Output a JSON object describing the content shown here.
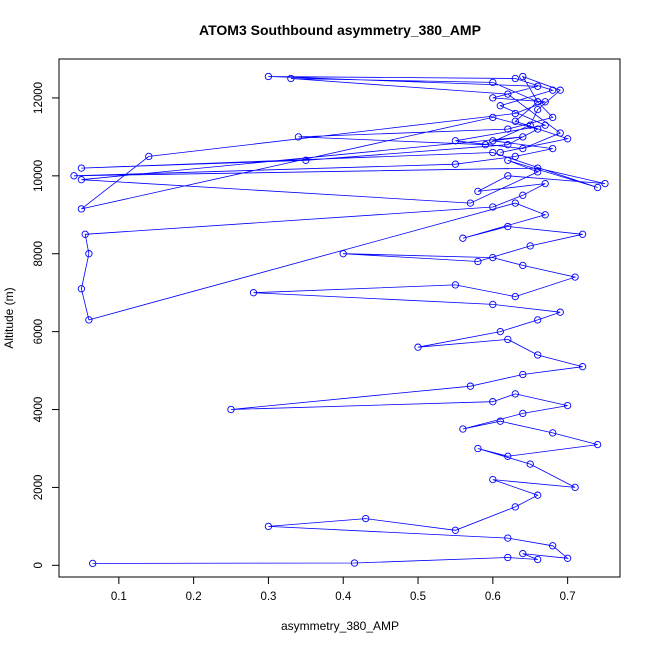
{
  "chart_data": {
    "type": "scatter",
    "title": "ATOM3 Southbound asymmetry_380_AMP",
    "xlabel": "asymmetry_380_AMP",
    "ylabel": "Altitude (m)",
    "xlim": [
      0.02,
      0.77
    ],
    "ylim": [
      -300,
      13000
    ],
    "x_ticks": [
      0.1,
      0.2,
      0.3,
      0.4,
      0.5,
      0.6,
      0.7
    ],
    "x_tick_labels": [
      "0.1",
      "0.2",
      "0.3",
      "0.4",
      "0.5",
      "0.6",
      "0.7"
    ],
    "y_ticks": [
      0,
      2000,
      4000,
      6000,
      8000,
      10000,
      12000
    ],
    "y_tick_labels": [
      "0",
      "2000",
      "4000",
      "6000",
      "8000",
      "10000",
      "12000"
    ],
    "grid": false,
    "legend": "none",
    "series": [
      {
        "color": "#0000ff",
        "marker": "open-circle",
        "line": true,
        "x": [
          0.065,
          0.415,
          0.62,
          0.66,
          0.64,
          0.7,
          0.68,
          0.62,
          0.3,
          0.43,
          0.55,
          0.63,
          0.66,
          0.6,
          0.71,
          0.65,
          0.58,
          0.62,
          0.74,
          0.68,
          0.61,
          0.56,
          0.64,
          0.7,
          0.63,
          0.6,
          0.25,
          0.57,
          0.64,
          0.72,
          0.66,
          0.62,
          0.5,
          0.61,
          0.66,
          0.69,
          0.6,
          0.28,
          0.55,
          0.63,
          0.71,
          0.64,
          0.6,
          0.4,
          0.58,
          0.65,
          0.72,
          0.62,
          0.56,
          0.67,
          0.63,
          0.06,
          0.05,
          0.06,
          0.055,
          0.6,
          0.64,
          0.67,
          0.58,
          0.62,
          0.75,
          0.66,
          0.04,
          0.55,
          0.63,
          0.68,
          0.6,
          0.64,
          0.05,
          0.57,
          0.66,
          0.62,
          0.74,
          0.6,
          0.05,
          0.35,
          0.62,
          0.66,
          0.6,
          0.05,
          0.14,
          0.63,
          0.67,
          0.6,
          0.66,
          0.3,
          0.63,
          0.68,
          0.61,
          0.67,
          0.55,
          0.64,
          0.69,
          0.62,
          0.33,
          0.6,
          0.66,
          0.68,
          0.62,
          0.34,
          0.59,
          0.65,
          0.66,
          0.69,
          0.64,
          0.66,
          0.63,
          0.7,
          0.61
        ],
        "y": [
          50,
          60,
          200,
          150,
          300,
          180,
          500,
          700,
          1000,
          1200,
          900,
          1500,
          1800,
          2200,
          2000,
          2600,
          3000,
          2800,
          3100,
          3400,
          3700,
          3500,
          3900,
          4100,
          4400,
          4200,
          4000,
          4600,
          4900,
          5100,
          5400,
          5800,
          5600,
          6000,
          6300,
          6500,
          6700,
          7000,
          7200,
          6900,
          7400,
          7700,
          7900,
          8000,
          7800,
          8200,
          8500,
          8700,
          8400,
          9000,
          9300,
          6300,
          7100,
          8000,
          8500,
          9200,
          9500,
          9800,
          9600,
          10000,
          9800,
          10200,
          10000,
          10300,
          10500,
          10700,
          10900,
          11000,
          9900,
          9300,
          10100,
          10400,
          9700,
          10600,
          10200,
          10400,
          10800,
          11200,
          11500,
          9150,
          10500,
          11600,
          11900,
          12000,
          12300,
          12550,
          12500,
          12200,
          11800,
          11300,
          10900,
          10700,
          11100,
          12100,
          12500,
          12400,
          11900,
          11500,
          11200,
          11000,
          10800,
          11300,
          11700,
          12200,
          12550,
          11900,
          11400,
          10950,
          10600
        ]
      }
    ]
  }
}
